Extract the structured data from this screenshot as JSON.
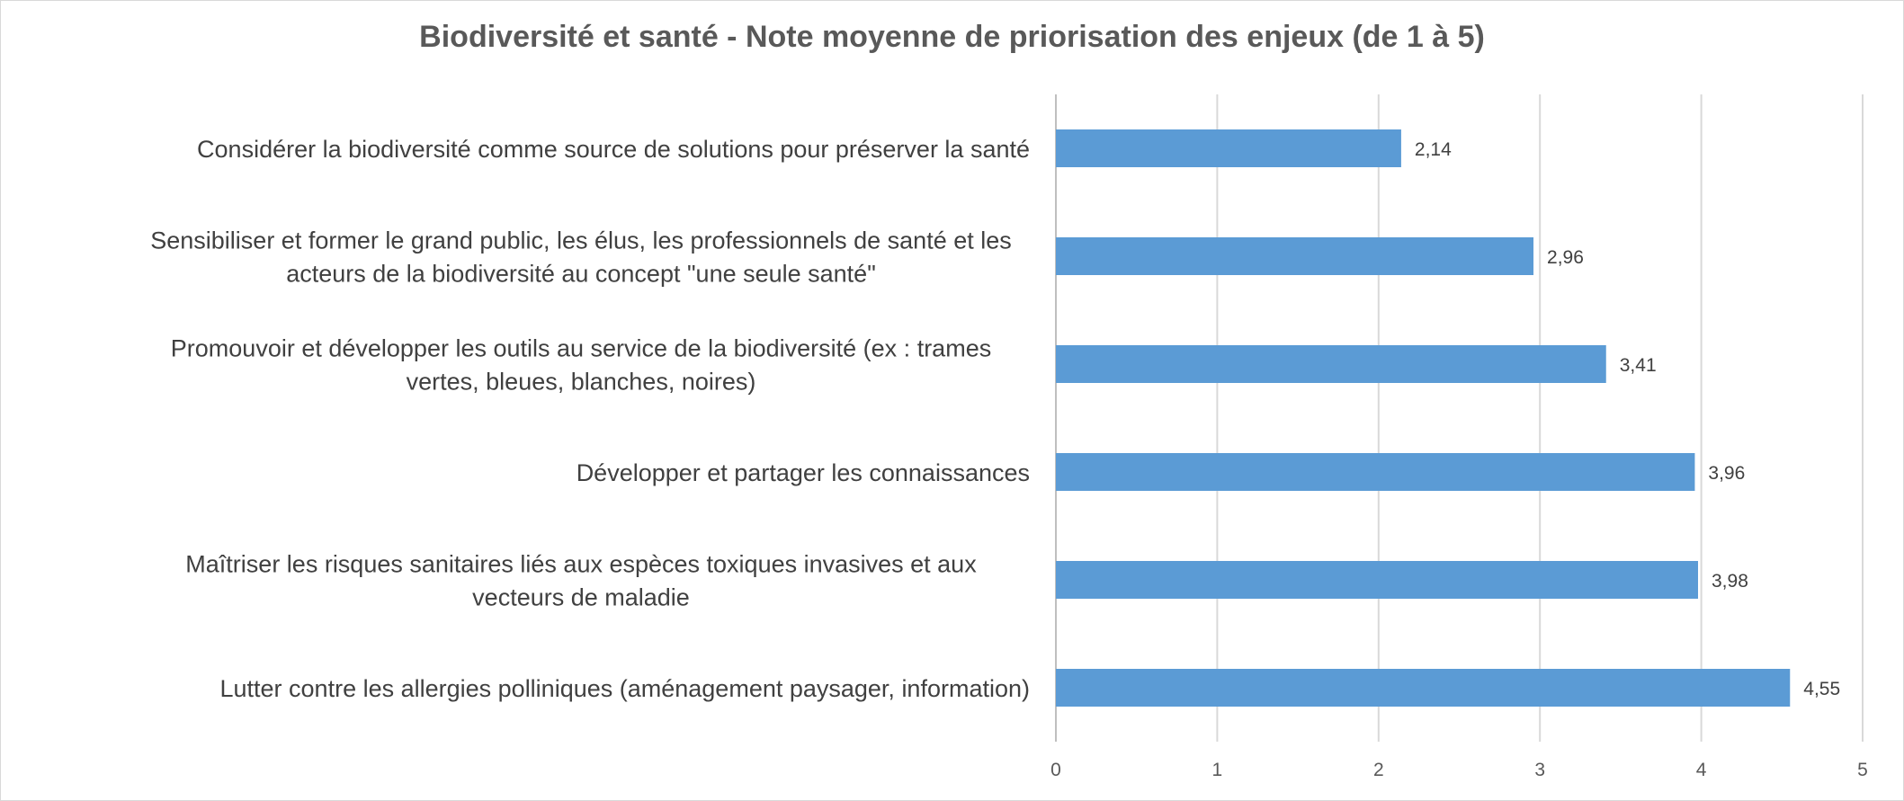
{
  "chart_data": {
    "type": "bar",
    "orientation": "horizontal",
    "title": "Biodiversité et santé - Note moyenne de priorisation des enjeux (de 1 à 5)",
    "categories": [
      [
        "Considérer la biodiversité comme source de solutions pour préserver la santé"
      ],
      [
        "Sensibiliser et former le grand public, les élus, les professionnels de santé et les",
        "acteurs de la biodiversité au concept \"une seule santé\""
      ],
      [
        "Promouvoir et développer les outils au service de la biodiversité (ex : trames",
        "vertes, bleues, blanches, noires)"
      ],
      [
        "Développer et partager les connaissances"
      ],
      [
        "Maîtriser les risques sanitaires liés aux espèces toxiques invasives et aux",
        "vecteurs de maladie"
      ],
      [
        "Lutter contre les allergies polliniques (aménagement paysager, information)"
      ]
    ],
    "values": [
      2.14,
      2.96,
      3.41,
      3.96,
      3.98,
      4.55
    ],
    "value_labels": [
      "2,14",
      "2,96",
      "3,41",
      "3,96",
      "3,98",
      "4,55"
    ],
    "xlim": [
      0,
      5
    ],
    "x_ticks": [
      "0",
      "1",
      "2",
      "3",
      "4",
      "5"
    ],
    "grid": true,
    "legend": "none",
    "colors": {
      "bar": "#5b9bd5",
      "grid": "#d9d9d9",
      "axis": "#bfbfbf"
    }
  }
}
